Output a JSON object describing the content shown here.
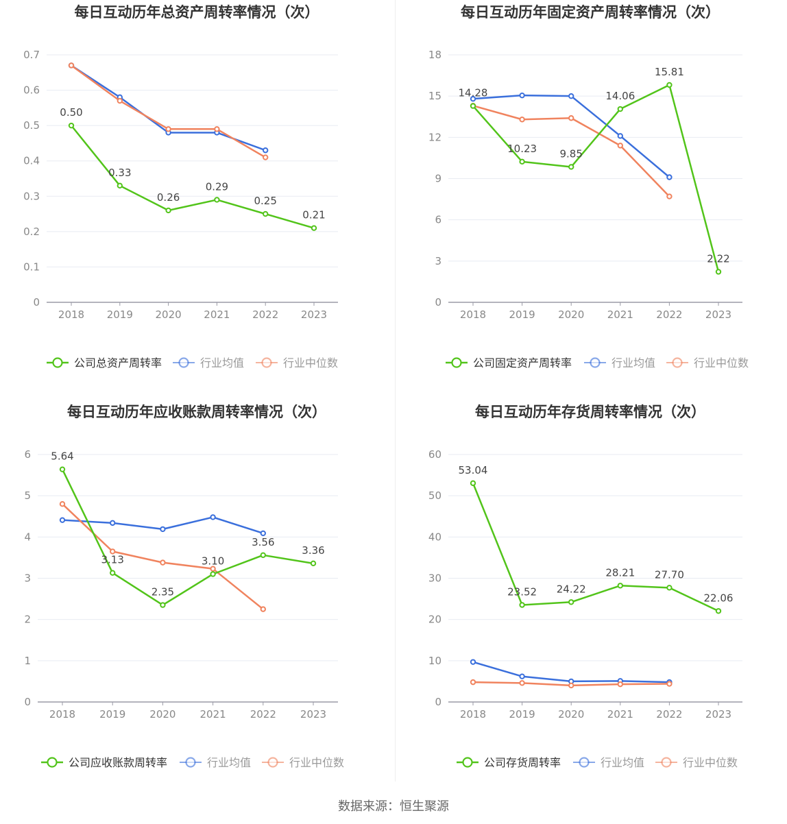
{
  "footer": "数据来源：恒生聚源",
  "colors": {
    "company": "#52c41a",
    "avg": "#3a6fdc",
    "median": "#f0835e",
    "grid": "#e8ebf2",
    "axis": "#9a9aa6",
    "tick": "#888888",
    "title": "#333333",
    "label": "#444444"
  },
  "chart_data": [
    {
      "type": "line",
      "title": "每日互动历年总资产周转率情况（次）",
      "x": [
        "2018",
        "2019",
        "2020",
        "2021",
        "2022",
        "2023"
      ],
      "ylim": [
        0,
        0.7
      ],
      "yticks": [
        "0",
        "0.1",
        "0.2",
        "0.3",
        "0.4",
        "0.5",
        "0.6",
        "0.7"
      ],
      "grid": true,
      "legend_position": "bottom",
      "series": [
        {
          "name": "公司总资产周转率",
          "color": "#52c41a",
          "labeled": true,
          "values": [
            0.5,
            0.33,
            0.26,
            0.29,
            0.25,
            0.21
          ],
          "labels": [
            "0.50",
            "0.33",
            "0.26",
            "0.29",
            "0.25",
            "0.21"
          ]
        },
        {
          "name": "行业均值",
          "color": "#3a6fdc",
          "labeled": false,
          "values": [
            0.67,
            0.58,
            0.48,
            0.48,
            0.43,
            null
          ]
        },
        {
          "name": "行业中位数",
          "color": "#f0835e",
          "labeled": false,
          "values": [
            0.67,
            0.57,
            0.49,
            0.49,
            0.41,
            null
          ]
        }
      ]
    },
    {
      "type": "line",
      "title": "每日互动历年固定资产周转率情况（次）",
      "x": [
        "2018",
        "2019",
        "2020",
        "2021",
        "2022",
        "2023"
      ],
      "ylim": [
        0,
        18
      ],
      "yticks": [
        "0",
        "3",
        "6",
        "9",
        "12",
        "15",
        "18"
      ],
      "grid": true,
      "legend_position": "bottom",
      "series": [
        {
          "name": "公司固定资产周转率",
          "color": "#52c41a",
          "labeled": true,
          "values": [
            14.28,
            10.23,
            9.85,
            14.06,
            15.81,
            2.22
          ],
          "labels": [
            "14.28",
            "10.23",
            "9.85",
            "14.06",
            "15.81",
            "2.22"
          ]
        },
        {
          "name": "行业均值",
          "color": "#3a6fdc",
          "labeled": false,
          "values": [
            14.8,
            15.05,
            15.0,
            12.1,
            9.1,
            null
          ]
        },
        {
          "name": "行业中位数",
          "color": "#f0835e",
          "labeled": false,
          "values": [
            14.3,
            13.3,
            13.4,
            11.4,
            7.7,
            null
          ]
        }
      ]
    },
    {
      "type": "line",
      "title": "每日互动历年应收账款周转率情况（次）",
      "x": [
        "2018",
        "2019",
        "2020",
        "2021",
        "2022",
        "2023"
      ],
      "ylim": [
        0,
        6
      ],
      "yticks": [
        "0",
        "1",
        "2",
        "3",
        "4",
        "5",
        "6"
      ],
      "grid": true,
      "legend_position": "bottom",
      "series": [
        {
          "name": "公司应收账款周转率",
          "color": "#52c41a",
          "labeled": true,
          "values": [
            5.64,
            3.13,
            2.35,
            3.1,
            3.56,
            3.36
          ],
          "labels": [
            "5.64",
            "3.13",
            "2.35",
            "3.10",
            "3.56",
            "3.36"
          ]
        },
        {
          "name": "行业均值",
          "color": "#3a6fdc",
          "labeled": false,
          "values": [
            4.41,
            4.34,
            4.19,
            4.48,
            4.09,
            null
          ]
        },
        {
          "name": "行业中位数",
          "color": "#f0835e",
          "labeled": false,
          "values": [
            4.8,
            3.65,
            3.38,
            3.23,
            2.25,
            null
          ]
        }
      ]
    },
    {
      "type": "line",
      "title": "每日互动历年存货周转率情况（次）",
      "x": [
        "2018",
        "2019",
        "2020",
        "2021",
        "2022",
        "2023"
      ],
      "ylim": [
        0,
        60
      ],
      "yticks": [
        "0",
        "10",
        "20",
        "30",
        "40",
        "50",
        "60"
      ],
      "grid": true,
      "legend_position": "bottom",
      "series": [
        {
          "name": "公司存货周转率",
          "color": "#52c41a",
          "labeled": true,
          "values": [
            53.04,
            23.52,
            24.22,
            28.21,
            27.7,
            22.06
          ],
          "labels": [
            "53.04",
            "23.52",
            "24.22",
            "28.21",
            "27.70",
            "22.06"
          ]
        },
        {
          "name": "行业均值",
          "color": "#3a6fdc",
          "labeled": false,
          "values": [
            9.7,
            6.2,
            5.0,
            5.1,
            4.8,
            null
          ]
        },
        {
          "name": "行业中位数",
          "color": "#f0835e",
          "labeled": false,
          "values": [
            4.8,
            4.6,
            4.0,
            4.3,
            4.4,
            null
          ]
        }
      ]
    }
  ]
}
